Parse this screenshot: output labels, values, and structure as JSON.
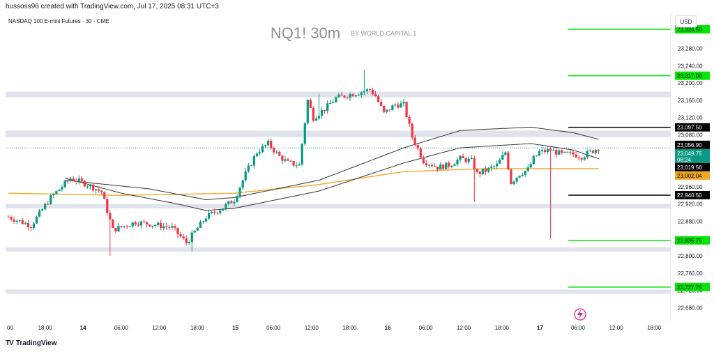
{
  "header": {
    "credit": "hussoss96 created with TradingView.com, Jul 17, 2025 08:31 UTC+3",
    "instrument": "NASDAQ 100 E-mini Futures · 30 · CME",
    "watermark": "NQ1! 30m",
    "byline": "BY WORLD CAPITAL 1",
    "currency": "USD"
  },
  "footer": {
    "logo_text": "TradingView",
    "logo_glyph": "TV"
  },
  "colors": {
    "up": "#089981",
    "down": "#f23645",
    "zone": "#e0e3eb",
    "green_level": "#00e600",
    "black_level": "#000000",
    "ma_orange": "#f0a824",
    "ma_black": "#333333"
  },
  "chart_data": {
    "type": "candlestick",
    "y_axis": {
      "ticks": [
        23280,
        23240,
        23200,
        23160,
        23120,
        23080,
        23040,
        23000,
        22960,
        22920,
        22880,
        22840,
        22800,
        22760,
        22720,
        22680
      ],
      "tick_labels": [
        "23,280.00",
        "23,240.00",
        "23,200.00",
        "23,160.00",
        "23,120.00",
        "23,080.00",
        "23,040.00",
        "23,000.00",
        "22,960.00",
        "22,920.00",
        "22,880.00",
        "22,840.00",
        "22,800.00",
        "22,760.00",
        "22,720.00",
        "22,680.00"
      ],
      "range": [
        22650,
        23360
      ]
    },
    "x_axis": {
      "labels": [
        "00",
        "18:00",
        "14",
        "06:00",
        "12:00",
        "18:00",
        "15",
        "06:00",
        "12:00",
        "18:00",
        "16",
        "06:00",
        "12:00",
        "18:00",
        "17",
        "06:00",
        "12:00",
        "18:00"
      ],
      "bold": [
        false,
        false,
        true,
        false,
        false,
        false,
        true,
        false,
        false,
        false,
        true,
        false,
        false,
        false,
        true,
        false,
        false,
        false
      ]
    },
    "zones": [
      [
        23167,
        23180
      ],
      [
        23075,
        23090
      ],
      [
        22910,
        22920
      ],
      [
        22810,
        22820
      ],
      [
        22712,
        22722
      ]
    ],
    "levels": [
      {
        "value": 23324.5,
        "label": "23,324.50",
        "kind": "green"
      },
      {
        "value": 23217.0,
        "label": "23,217.00",
        "kind": "green"
      },
      {
        "value": 23097.5,
        "label": "23,097.50",
        "kind": "black"
      },
      {
        "value": 22940.5,
        "label": "22,940.50",
        "kind": "black"
      },
      {
        "value": 22835.75,
        "label": "22,835.75",
        "kind": "green"
      },
      {
        "value": 22727.75,
        "label": "22,727.75",
        "kind": "green"
      }
    ],
    "price_tags": [
      {
        "value": 23056.9,
        "label": "23,056.90",
        "style": "black"
      },
      {
        "value": 23049.75,
        "label": "23,049.75",
        "sub": "08:24",
        "style": "teal"
      },
      {
        "value": 23019.56,
        "label": "23,019.56",
        "style": "black"
      },
      {
        "value": 23002.04,
        "label": "23,002.04",
        "style": "orange"
      }
    ],
    "last_price": 23049.75,
    "anchors": [
      [
        0,
        22890
      ],
      [
        8,
        22870
      ],
      [
        15,
        22935
      ],
      [
        22,
        22980
      ],
      [
        28,
        22965
      ],
      [
        33,
        22948
      ],
      [
        37,
        22860
      ],
      [
        45,
        22878
      ],
      [
        52,
        22872
      ],
      [
        58,
        22865
      ],
      [
        63,
        22830
      ],
      [
        70,
        22890
      ],
      [
        76,
        22912
      ],
      [
        80,
        22930
      ],
      [
        84,
        22990
      ],
      [
        88,
        23040
      ],
      [
        92,
        23060
      ],
      [
        96,
        23030
      ],
      [
        99,
        23015
      ],
      [
        103,
        23010
      ],
      [
        106,
        23160
      ],
      [
        108,
        23120
      ],
      [
        112,
        23140
      ],
      [
        116,
        23165
      ],
      [
        120,
        23172
      ],
      [
        124,
        23178
      ],
      [
        128,
        23185
      ],
      [
        130,
        23170
      ],
      [
        133,
        23130
      ],
      [
        137,
        23150
      ],
      [
        140,
        23150
      ],
      [
        143,
        23075
      ],
      [
        147,
        23020
      ],
      [
        152,
        23005
      ],
      [
        156,
        23010
      ],
      [
        160,
        23025
      ],
      [
        164,
        23020
      ],
      [
        166,
        22990
      ],
      [
        170,
        23000
      ],
      [
        173,
        23010
      ],
      [
        176,
        23040
      ],
      [
        178,
        22970
      ],
      [
        181,
        22990
      ],
      [
        184,
        23000
      ],
      [
        186,
        23025
      ],
      [
        188,
        23040
      ],
      [
        192,
        23045
      ],
      [
        196,
        23035
      ],
      [
        200,
        23035
      ],
      [
        203,
        23030
      ],
      [
        206,
        23040
      ],
      [
        209,
        23049.75
      ]
    ],
    "ma_orange_anchors": [
      [
        0,
        22945
      ],
      [
        40,
        22940
      ],
      [
        80,
        22945
      ],
      [
        110,
        22965
      ],
      [
        140,
        22995
      ],
      [
        170,
        23002
      ],
      [
        209,
        23002
      ]
    ],
    "ma_upper_anchors": [
      [
        20,
        22975
      ],
      [
        50,
        22955
      ],
      [
        70,
        22930
      ],
      [
        80,
        22935
      ],
      [
        110,
        22975
      ],
      [
        140,
        23050
      ],
      [
        160,
        23090
      ],
      [
        185,
        23098
      ],
      [
        200,
        23085
      ],
      [
        209,
        23070
      ]
    ],
    "ma_lower_anchors": [
      [
        20,
        22980
      ],
      [
        40,
        22945
      ],
      [
        60,
        22920
      ],
      [
        70,
        22905
      ],
      [
        80,
        22910
      ],
      [
        110,
        22950
      ],
      [
        140,
        23015
      ],
      [
        160,
        23050
      ],
      [
        185,
        23060
      ],
      [
        200,
        23045
      ],
      [
        209,
        23025
      ]
    ],
    "spikes": [
      [
        36,
        22800
      ],
      [
        65,
        22810
      ],
      [
        110,
        23175
      ],
      [
        126,
        23230
      ],
      [
        165,
        22925
      ],
      [
        192,
        22840
      ],
      [
        210,
        23090
      ]
    ]
  }
}
